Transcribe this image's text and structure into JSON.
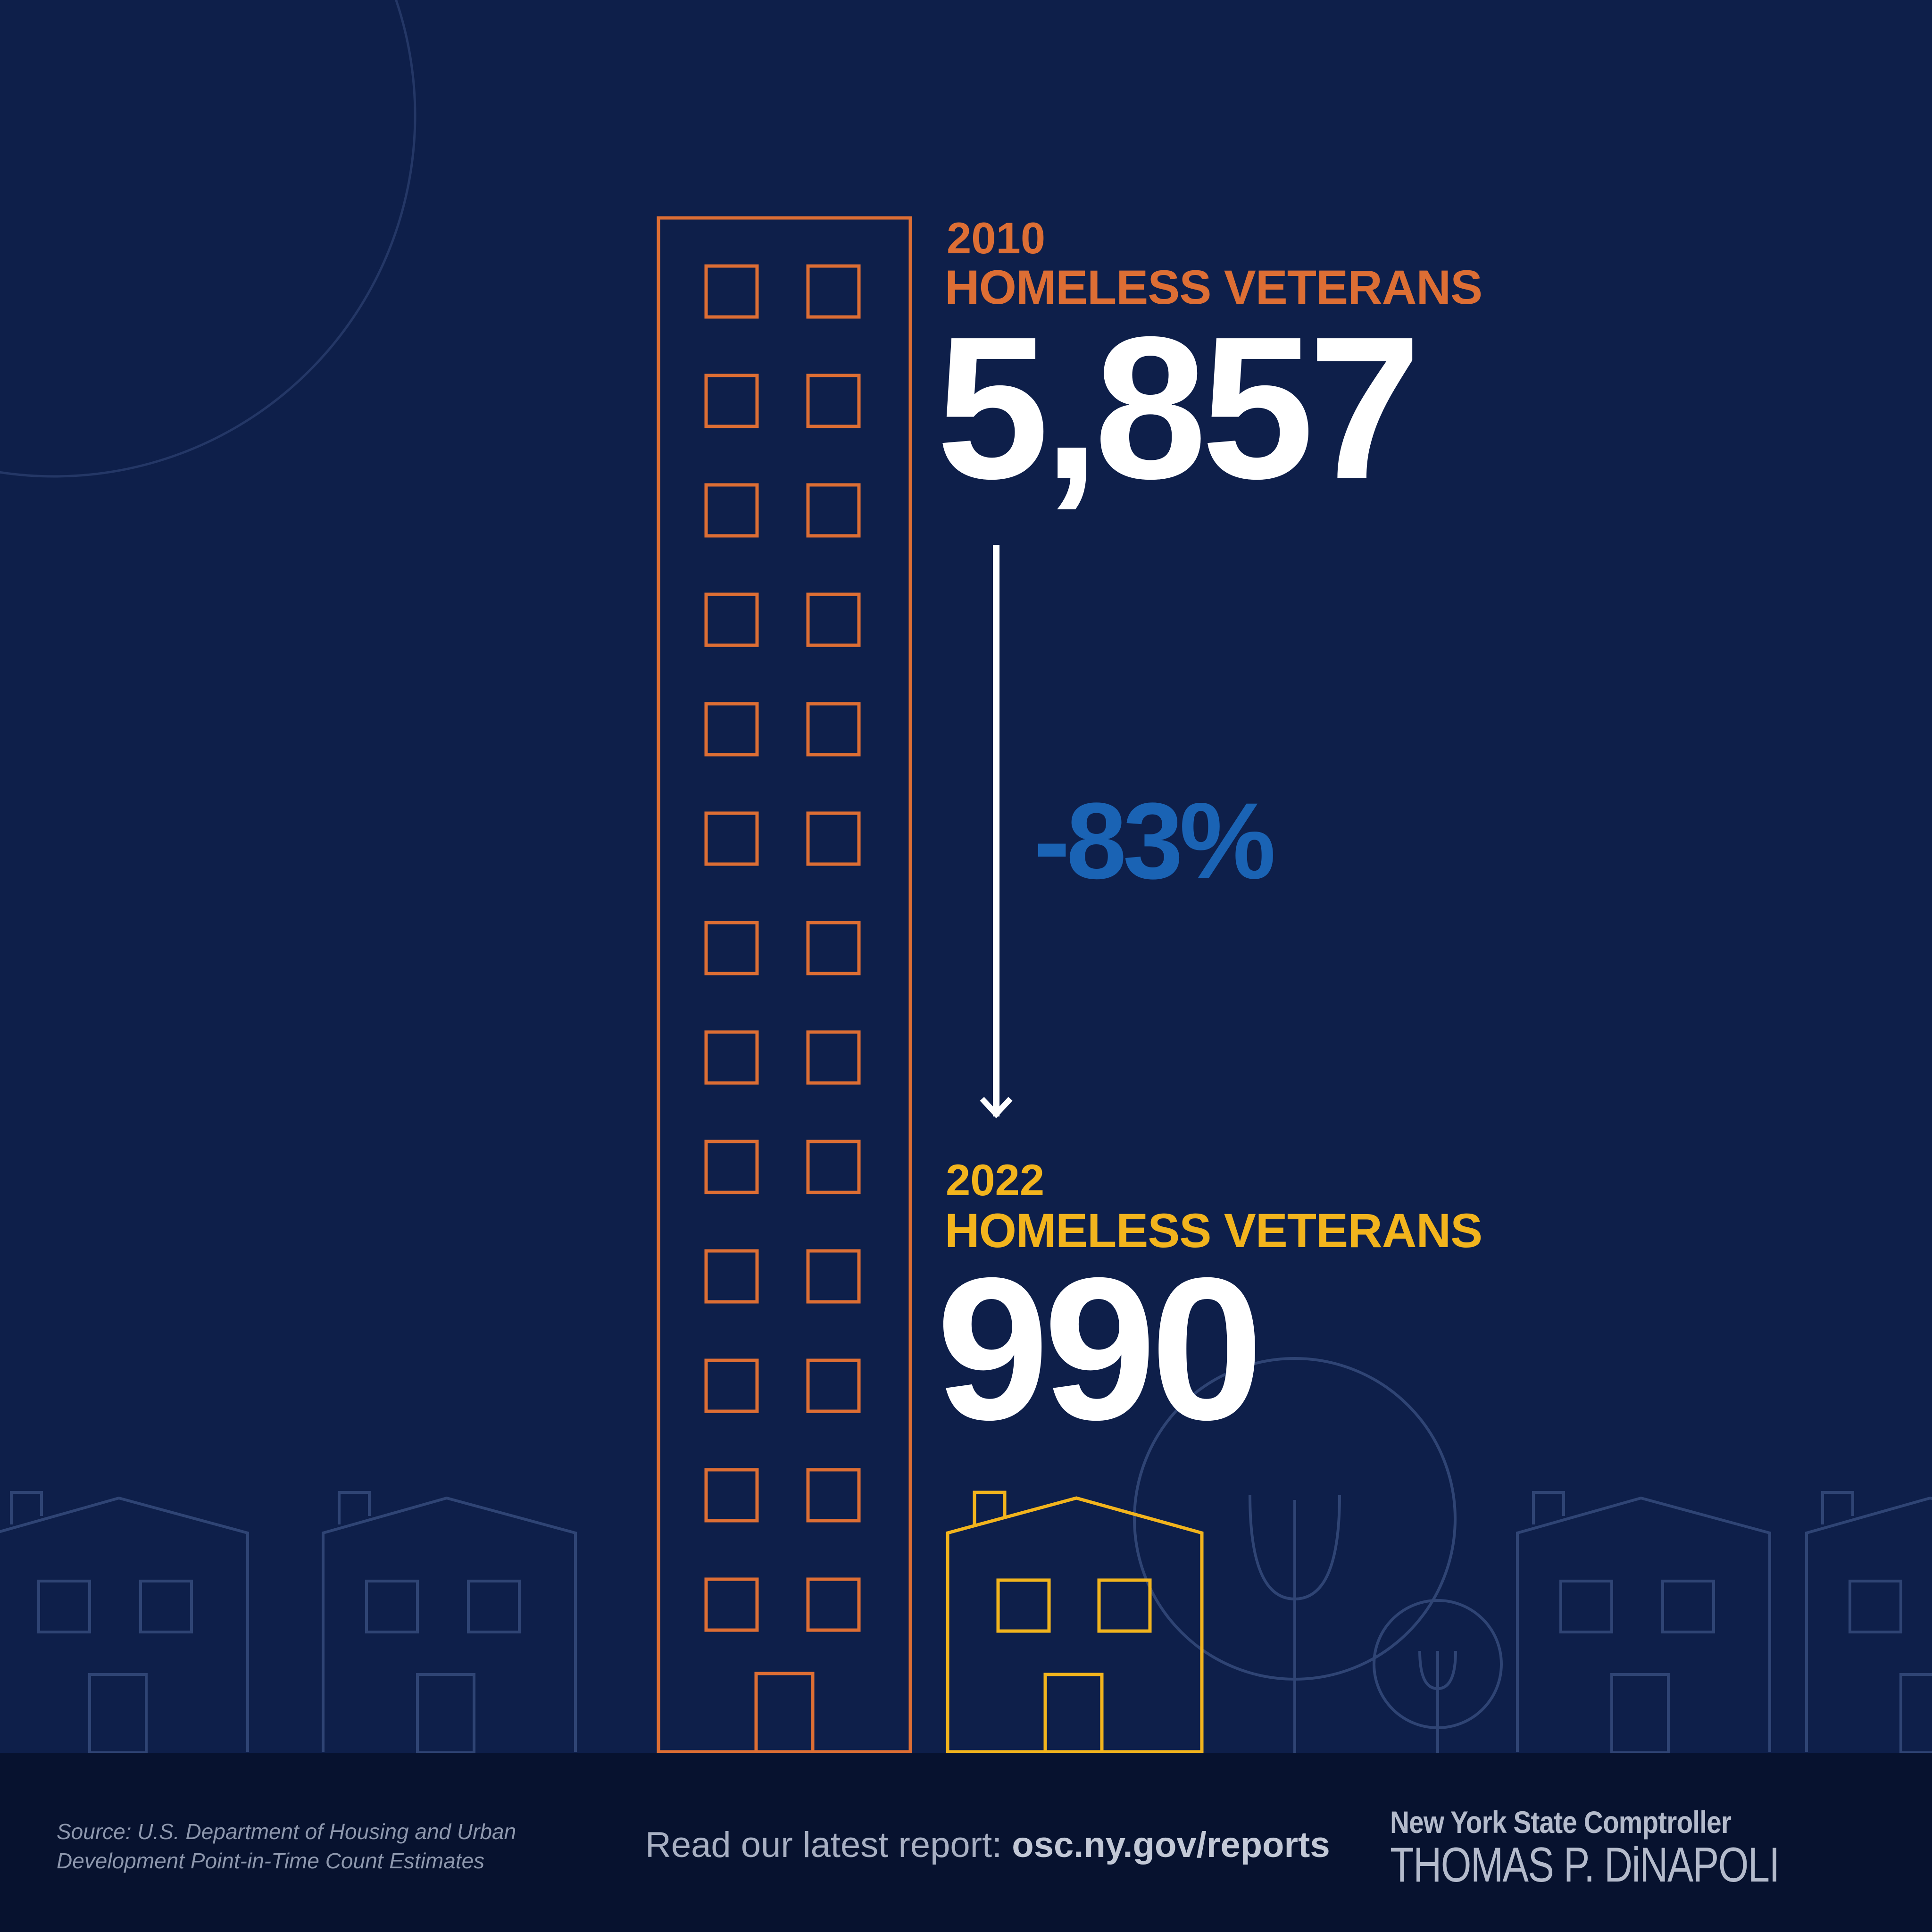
{
  "colors": {
    "background": "#0e1f4a",
    "footer": "#07122f",
    "orange": "#dd6e34",
    "yellow": "#f2b41d",
    "blue": "#1a63b4",
    "white": "#ffffff",
    "outline": "#2f4474"
  },
  "stat_2010": {
    "year": "2010",
    "label": "HOMELESS VETERANS",
    "value": "5,857"
  },
  "stat_2022": {
    "year": "2022",
    "label": "HOMELESS VETERANS",
    "value": "990"
  },
  "change": {
    "percent": "-83%"
  },
  "footer": {
    "source_line1": "Source: U.S. Department of Housing and Urban",
    "source_line2": "Development Point-in-Time Count Estimates",
    "read_prefix": "Read our latest report: ",
    "read_link": "osc.ny.gov/reports",
    "logo_line1": "New York State Comptroller",
    "logo_line2": "THOMAS P. DiNAPOLI"
  }
}
